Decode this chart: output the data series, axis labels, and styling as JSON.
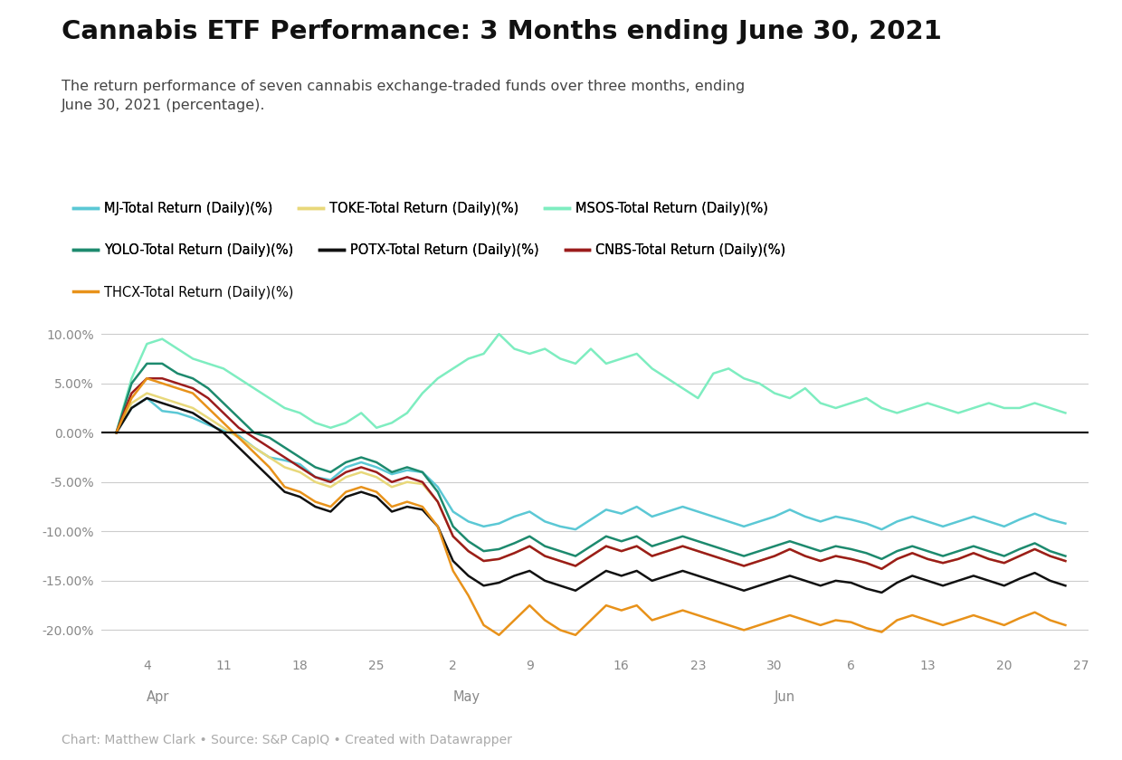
{
  "title": "Cannabis ETF Performance: 3 Months ending June 30, 2021",
  "subtitle": "The return performance of seven cannabis exchange-traded funds over three months, ending\nJune 30, 2021 (percentage).",
  "footer": "Chart: Matthew Clark • Source: S&P CapIQ • Created with Datawrapper",
  "tick_labels": [
    "4",
    "11",
    "18",
    "25",
    "2",
    "9",
    "16",
    "23",
    "30",
    "6",
    "13",
    "20",
    "27"
  ],
  "month_labels": [
    "Apr",
    "May",
    "Jun"
  ],
  "month_tick_idx": [
    0,
    4,
    8
  ],
  "ylim": [
    -22,
    11.5
  ],
  "yticks": [
    10.0,
    5.0,
    0.0,
    -5.0,
    -10.0,
    -15.0,
    -20.0
  ],
  "series_order": [
    "MJ",
    "TOKE",
    "MSOS",
    "YOLO",
    "POTX",
    "CNBS",
    "THCX"
  ],
  "colors": {
    "MJ": "#5BC8D5",
    "TOKE": "#E8D87A",
    "MSOS": "#7EEDC0",
    "YOLO": "#1D8A6E",
    "POTX": "#111111",
    "CNBS": "#9B1C1C",
    "THCX": "#E8921A"
  },
  "labels": {
    "MJ": "MJ-Total Return (Daily)(%)",
    "TOKE": "TOKE-Total Return (Daily)(%)",
    "MSOS": "MSOS-Total Return (Daily)(%)",
    "YOLO": "YOLO-Total Return (Daily)(%)",
    "POTX": "POTX-Total Return (Daily)(%)",
    "CNBS": "CNBS-Total Return (Daily)(%)",
    "THCX": "THCX-Total Return (Daily)(%)"
  },
  "data": {
    "MJ": [
      0.0,
      2.5,
      3.5,
      2.2,
      2.0,
      1.5,
      0.8,
      0.2,
      -0.3,
      -1.5,
      -2.5,
      -2.8,
      -3.2,
      -4.5,
      -4.8,
      -3.5,
      -3.0,
      -3.5,
      -4.2,
      -3.8,
      -4.0,
      -5.5,
      -8.0,
      -9.0,
      -9.5,
      -9.2,
      -8.5,
      -8.0,
      -9.0,
      -9.5,
      -9.8,
      -8.8,
      -7.8,
      -8.2,
      -7.5,
      -8.5,
      -8.0,
      -7.5,
      -8.0,
      -8.5,
      -9.0,
      -9.5,
      -9.0,
      -8.5,
      -7.8,
      -8.5,
      -9.0,
      -8.5,
      -8.8,
      -9.2,
      -9.8,
      -9.0,
      -8.5,
      -9.0,
      -9.5,
      -9.0,
      -8.5,
      -9.0,
      -9.5,
      -8.8,
      -8.2,
      -8.8,
      -9.2
    ],
    "TOKE": [
      0.0,
      3.0,
      4.0,
      3.5,
      3.0,
      2.5,
      1.5,
      0.5,
      -0.5,
      -1.5,
      -2.5,
      -3.5,
      -4.0,
      -5.0,
      -5.5,
      -4.5,
      -4.0,
      -4.5,
      -5.5,
      -5.0,
      -5.2,
      -7.0,
      -10.5,
      -12.0,
      -13.0,
      -12.8,
      -12.2,
      -11.5,
      -12.5,
      -13.0,
      -13.5,
      -12.5,
      -11.5,
      -12.0,
      -11.5,
      -12.5,
      -12.0,
      -11.5,
      -12.0,
      -12.5,
      -13.0,
      -13.5,
      -13.0,
      -12.5,
      -11.8,
      -12.5,
      -13.0,
      -12.5,
      -12.8,
      -13.2,
      -13.8,
      -12.8,
      -12.2,
      -12.8,
      -13.2,
      -12.8,
      -12.2,
      -12.8,
      -13.2,
      -12.5,
      -11.8,
      -12.5,
      -13.0
    ],
    "MSOS": [
      0.0,
      5.5,
      9.0,
      9.5,
      8.5,
      7.5,
      7.0,
      6.5,
      5.5,
      4.5,
      3.5,
      2.5,
      2.0,
      1.0,
      0.5,
      1.0,
      2.0,
      0.5,
      1.0,
      2.0,
      4.0,
      5.5,
      6.5,
      7.5,
      8.0,
      10.0,
      8.5,
      8.0,
      8.5,
      7.5,
      7.0,
      8.5,
      7.0,
      7.5,
      8.0,
      6.5,
      5.5,
      4.5,
      3.5,
      6.0,
      6.5,
      5.5,
      5.0,
      4.0,
      3.5,
      4.5,
      3.0,
      2.5,
      3.0,
      3.5,
      2.5,
      2.0,
      2.5,
      3.0,
      2.5,
      2.0,
      2.5,
      3.0,
      2.5,
      2.5,
      3.0,
      2.5,
      2.0
    ],
    "YOLO": [
      0.0,
      5.0,
      7.0,
      7.0,
      6.0,
      5.5,
      4.5,
      3.0,
      1.5,
      0.0,
      -0.5,
      -1.5,
      -2.5,
      -3.5,
      -4.0,
      -3.0,
      -2.5,
      -3.0,
      -4.0,
      -3.5,
      -4.0,
      -6.0,
      -9.5,
      -11.0,
      -12.0,
      -11.8,
      -11.2,
      -10.5,
      -11.5,
      -12.0,
      -12.5,
      -11.5,
      -10.5,
      -11.0,
      -10.5,
      -11.5,
      -11.0,
      -10.5,
      -11.0,
      -11.5,
      -12.0,
      -12.5,
      -12.0,
      -11.5,
      -11.0,
      -11.5,
      -12.0,
      -11.5,
      -11.8,
      -12.2,
      -12.8,
      -12.0,
      -11.5,
      -12.0,
      -12.5,
      -12.0,
      -11.5,
      -12.0,
      -12.5,
      -11.8,
      -11.2,
      -12.0,
      -12.5
    ],
    "POTX": [
      0.0,
      2.5,
      3.5,
      3.0,
      2.5,
      2.0,
      1.0,
      0.0,
      -1.5,
      -3.0,
      -4.5,
      -6.0,
      -6.5,
      -7.5,
      -8.0,
      -6.5,
      -6.0,
      -6.5,
      -8.0,
      -7.5,
      -7.8,
      -9.5,
      -13.0,
      -14.5,
      -15.5,
      -15.2,
      -14.5,
      -14.0,
      -15.0,
      -15.5,
      -16.0,
      -15.0,
      -14.0,
      -14.5,
      -14.0,
      -15.0,
      -14.5,
      -14.0,
      -14.5,
      -15.0,
      -15.5,
      -16.0,
      -15.5,
      -15.0,
      -14.5,
      -15.0,
      -15.5,
      -15.0,
      -15.2,
      -15.8,
      -16.2,
      -15.2,
      -14.5,
      -15.0,
      -15.5,
      -15.0,
      -14.5,
      -15.0,
      -15.5,
      -14.8,
      -14.2,
      -15.0,
      -15.5
    ],
    "CNBS": [
      0.0,
      4.0,
      5.5,
      5.5,
      5.0,
      4.5,
      3.5,
      2.0,
      0.5,
      -0.5,
      -1.5,
      -2.5,
      -3.5,
      -4.5,
      -5.0,
      -4.0,
      -3.5,
      -4.0,
      -5.0,
      -4.5,
      -5.0,
      -7.0,
      -10.5,
      -12.0,
      -13.0,
      -12.8,
      -12.2,
      -11.5,
      -12.5,
      -13.0,
      -13.5,
      -12.5,
      -11.5,
      -12.0,
      -11.5,
      -12.5,
      -12.0,
      -11.5,
      -12.0,
      -12.5,
      -13.0,
      -13.5,
      -13.0,
      -12.5,
      -11.8,
      -12.5,
      -13.0,
      -12.5,
      -12.8,
      -13.2,
      -13.8,
      -12.8,
      -12.2,
      -12.8,
      -13.2,
      -12.8,
      -12.2,
      -12.8,
      -13.2,
      -12.5,
      -11.8,
      -12.5,
      -13.0
    ],
    "THCX": [
      0.0,
      3.5,
      5.5,
      5.0,
      4.5,
      4.0,
      2.5,
      1.0,
      -0.5,
      -2.0,
      -3.5,
      -5.5,
      -6.0,
      -7.0,
      -7.5,
      -6.0,
      -5.5,
      -6.0,
      -7.5,
      -7.0,
      -7.5,
      -9.5,
      -14.0,
      -16.5,
      -19.5,
      -20.5,
      -19.0,
      -17.5,
      -19.0,
      -20.0,
      -20.5,
      -19.0,
      -17.5,
      -18.0,
      -17.5,
      -19.0,
      -18.5,
      -18.0,
      -18.5,
      -19.0,
      -19.5,
      -20.0,
      -19.5,
      -19.0,
      -18.5,
      -19.0,
      -19.5,
      -19.0,
      -19.2,
      -19.8,
      -20.2,
      -19.0,
      -18.5,
      -19.0,
      -19.5,
      -19.0,
      -18.5,
      -19.0,
      -19.5,
      -18.8,
      -18.2,
      -19.0,
      -19.5
    ]
  }
}
